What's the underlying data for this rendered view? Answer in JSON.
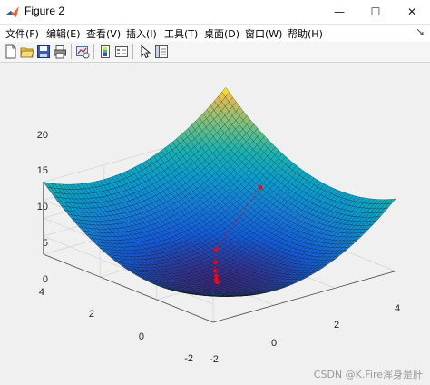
{
  "window": {
    "title": "Figure 2",
    "minimize_glyph": "—",
    "maximize_glyph": "☐",
    "close_glyph": "✕"
  },
  "menu": {
    "items": [
      {
        "label": "文件(F)"
      },
      {
        "label": "编辑(E)"
      },
      {
        "label": "查看(V)"
      },
      {
        "label": "插入(I)"
      },
      {
        "label": "工具(T)"
      },
      {
        "label": "桌面(D)"
      },
      {
        "label": "窗口(W)"
      },
      {
        "label": "帮助(H)"
      }
    ],
    "pin_glyph": "↘"
  },
  "toolbar": {
    "buttons": [
      "new-figure-icon",
      "open-file-icon",
      "save-icon",
      "print-icon",
      "link-plot-icon",
      "insert-colorbar-icon",
      "insert-legend-icon",
      "select-pointer-icon",
      "property-inspector-icon"
    ]
  },
  "plot": {
    "z_ticks": [
      "0",
      "5",
      "10",
      "15",
      "20"
    ],
    "y_ticks": [
      "-2",
      "0",
      "2",
      "4"
    ],
    "x_ticks": [
      "-2",
      "0",
      "2",
      "4"
    ],
    "colormap": "parula",
    "surface": "z = x^2 + y^2",
    "marker_color": "#ff0000",
    "path_points": [
      {
        "x": 3.0,
        "y": 1.7,
        "z": 13.9
      },
      {
        "x": 0.8,
        "y": 0.9,
        "z": 4.5
      },
      {
        "x": 0.5,
        "y": 0.6,
        "z": 2.5
      },
      {
        "x": 0.3,
        "y": 0.4,
        "z": 1.3
      },
      {
        "x": 0.2,
        "y": 0.25,
        "z": 0.6
      },
      {
        "x": 0.1,
        "y": 0.15,
        "z": 0.2
      },
      {
        "x": 0.05,
        "y": 0.08,
        "z": 0.05
      },
      {
        "x": 0.02,
        "y": 0.03,
        "z": 0.01
      },
      {
        "x": 0.0,
        "y": 0.0,
        "z": 0.0
      }
    ]
  },
  "watermark": "CSDN @K.Fire浑身是肝"
}
